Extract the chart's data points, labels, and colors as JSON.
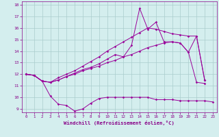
{
  "line_bottom": {
    "x": [
      0,
      1,
      2,
      3,
      4,
      5,
      6,
      7,
      8,
      9,
      10,
      11,
      12,
      13,
      14,
      15,
      16,
      17,
      18,
      19,
      20,
      21,
      22,
      23
    ],
    "y": [
      12.0,
      11.9,
      11.4,
      10.1,
      9.4,
      9.3,
      8.8,
      9.0,
      9.5,
      9.9,
      10.0,
      10.0,
      10.0,
      10.0,
      10.0,
      10.0,
      9.8,
      9.8,
      9.8,
      9.7,
      9.7,
      9.7,
      9.7,
      9.6
    ]
  },
  "line_lower_diag": {
    "x": [
      0,
      1,
      2,
      3,
      4,
      5,
      6,
      7,
      8,
      9,
      10,
      11,
      12,
      13,
      14,
      15,
      16,
      17,
      18,
      19,
      20,
      21,
      22
    ],
    "y": [
      12.0,
      11.9,
      11.4,
      11.3,
      11.5,
      11.8,
      12.0,
      12.3,
      12.5,
      12.7,
      13.0,
      13.2,
      13.5,
      13.7,
      14.0,
      14.3,
      14.5,
      14.7,
      14.8,
      14.7,
      13.9,
      11.3,
      11.2
    ]
  },
  "line_upper_diag": {
    "x": [
      0,
      1,
      2,
      3,
      4,
      5,
      6,
      7,
      8,
      9,
      10,
      11,
      12,
      13,
      14,
      15,
      16,
      17,
      18,
      19,
      20,
      21,
      22
    ],
    "y": [
      12.0,
      11.9,
      11.4,
      11.3,
      11.7,
      12.0,
      12.3,
      12.7,
      13.1,
      13.5,
      14.0,
      14.4,
      14.8,
      15.2,
      15.6,
      16.0,
      15.9,
      15.7,
      15.5,
      15.4,
      15.3,
      15.3,
      11.5
    ]
  },
  "line_spiky": {
    "x": [
      0,
      1,
      2,
      3,
      4,
      5,
      6,
      7,
      8,
      9,
      10,
      11,
      12,
      13,
      14,
      15,
      16,
      17,
      18,
      19,
      20,
      21,
      22
    ],
    "y": [
      12.0,
      11.9,
      11.4,
      11.3,
      11.5,
      11.8,
      12.1,
      12.4,
      12.6,
      12.9,
      13.3,
      13.7,
      13.5,
      14.5,
      17.7,
      15.9,
      16.5,
      14.8,
      14.8,
      14.7,
      13.9,
      15.3,
      11.5
    ]
  },
  "color": "#990099",
  "bg_color": "#d4eeee",
  "grid_color": "#aacccc",
  "ylim": [
    9,
    18
  ],
  "xlim": [
    -0.5,
    23.5
  ],
  "yticks": [
    9,
    10,
    11,
    12,
    13,
    14,
    15,
    16,
    17,
    18
  ],
  "xticks": [
    0,
    1,
    2,
    3,
    4,
    5,
    6,
    7,
    8,
    9,
    10,
    11,
    12,
    13,
    14,
    15,
    16,
    17,
    18,
    19,
    20,
    21,
    22,
    23
  ],
  "xlabel": "Windchill (Refroidissement éolien,°C)"
}
